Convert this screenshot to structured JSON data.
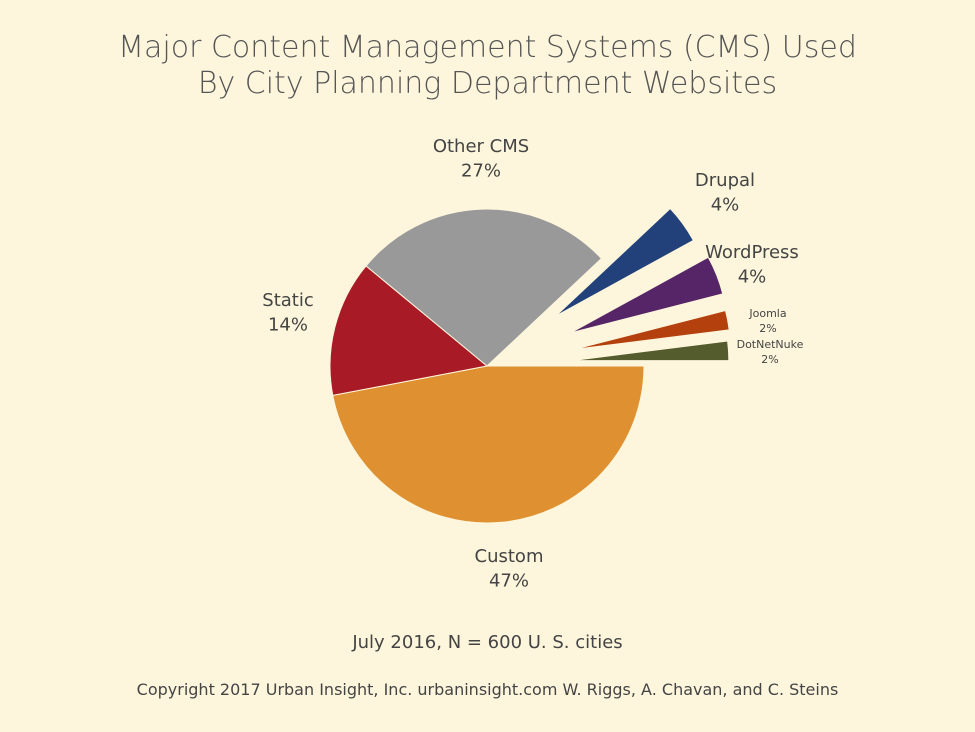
{
  "title_line1": "Major Content Management Systems (CMS) Used",
  "title_line2": "By City Planning Department Websites",
  "note": "July 2016, N = 600 U. S. cities",
  "copyright": "Copyright 2017 Urban Insight, Inc. urbaninsight.com  W. Riggs, A. Chavan, and C. Steins",
  "chart_data": {
    "type": "pie",
    "unit": "%",
    "slices": [
      {
        "label": "Custom",
        "value": 47,
        "display": "47%",
        "color": "#df9030",
        "exploded": false
      },
      {
        "label": "Static",
        "value": 14,
        "display": "14%",
        "color": "#a81b26",
        "exploded": false
      },
      {
        "label": "Other CMS",
        "value": 27,
        "display": "27%",
        "color": "#999999",
        "exploded": false
      },
      {
        "label": "Drupal",
        "value": 4,
        "display": "4%",
        "color": "#22417a",
        "exploded": true
      },
      {
        "label": "WordPress",
        "value": 4,
        "display": "4%",
        "color": "#552567",
        "exploded": true
      },
      {
        "label": "Joomla",
        "value": 2,
        "display": "2%",
        "color": "#b4410d",
        "exploded": true
      },
      {
        "label": "DotNetNuke",
        "value": 2,
        "display": "2%",
        "color": "#545b2c",
        "exploded": true
      }
    ]
  }
}
